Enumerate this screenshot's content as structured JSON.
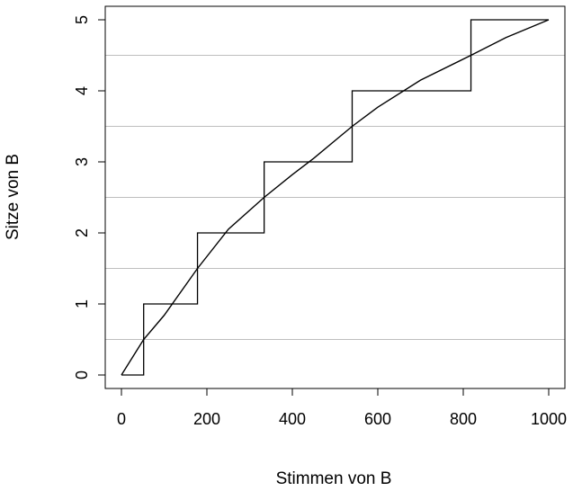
{
  "chart_data": {
    "type": "line",
    "title": "",
    "xlabel": "Stimmen von B",
    "ylabel": "Sitze von B",
    "xlim": [
      0,
      1000
    ],
    "ylim": [
      0,
      5
    ],
    "x_ticks": [
      "0",
      "200",
      "400",
      "600",
      "800",
      "1000"
    ],
    "y_ticks": [
      "0",
      "1",
      "2",
      "3",
      "4",
      "5"
    ],
    "grid": "horizontal lines at 0.5, 1.5, 2.5, 3.5, 4.5",
    "gridlines_y": [
      0.5,
      1.5,
      2.5,
      3.5,
      4.5
    ],
    "series": [
      {
        "kind": "step",
        "breakpoints_x": [
          52,
          178,
          334,
          540,
          818
        ],
        "levels_y": [
          0,
          1,
          2,
          3,
          4,
          5
        ],
        "x_end": 1000
      },
      {
        "kind": "curve",
        "x": [
          0,
          52,
          100,
          178,
          250,
          334,
          400,
          450,
          540,
          600,
          700,
          818,
          900,
          1000
        ],
        "y": [
          0,
          0.5,
          0.84,
          1.5,
          2.05,
          2.5,
          2.82,
          3.05,
          3.5,
          3.77,
          4.15,
          4.5,
          4.75,
          5
        ]
      }
    ],
    "colors": {
      "line": "#000000",
      "grid": "#bebebe"
    }
  }
}
